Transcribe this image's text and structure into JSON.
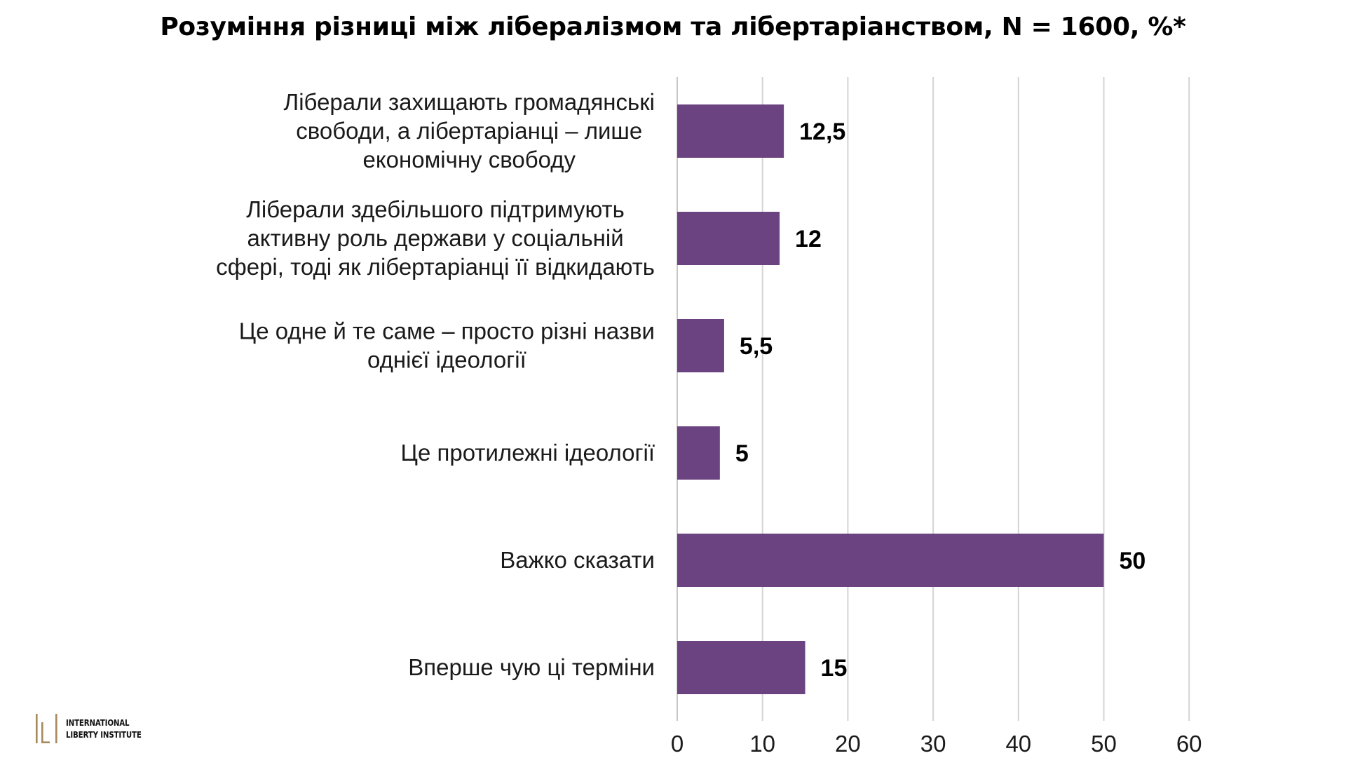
{
  "chart_data": {
    "type": "bar",
    "orientation": "horizontal",
    "title": "Розуміння різниці між лібералізмом та лібертаріанством, N = 1600, %*",
    "categories": [
      [
        "Ліберали захищають громадянські",
        "свободи, а лібертаріанці – лише",
        "економічну свободу"
      ],
      [
        "Ліберали здебільшого підтримують",
        "активну роль держави у соціальній",
        "сфері, тоді як лібертаріанці її відкидають"
      ],
      [
        "Це одне й те саме – просто різні назви",
        "однієї ідеології"
      ],
      [
        "Це протилежні ідеології"
      ],
      [
        "Важко сказати"
      ],
      [
        "Вперше чую ці терміни"
      ]
    ],
    "values": [
      12.5,
      12,
      5.5,
      5,
      50,
      15
    ],
    "value_labels": [
      "12,5",
      "12",
      "5,5",
      "5",
      "50",
      "15"
    ],
    "xlim": [
      0,
      60
    ],
    "xticks": [
      "0",
      "10",
      "20",
      "30",
      "40",
      "50",
      "60"
    ],
    "xlabel": "",
    "ylabel": "",
    "grid": "vertical",
    "legend": "none",
    "bar_color": "#6b4380",
    "grid_color": "#d4d4d4"
  },
  "logo": {
    "line1": "International",
    "line2": "Liberty Institute",
    "mark_color": "#a8895c"
  }
}
